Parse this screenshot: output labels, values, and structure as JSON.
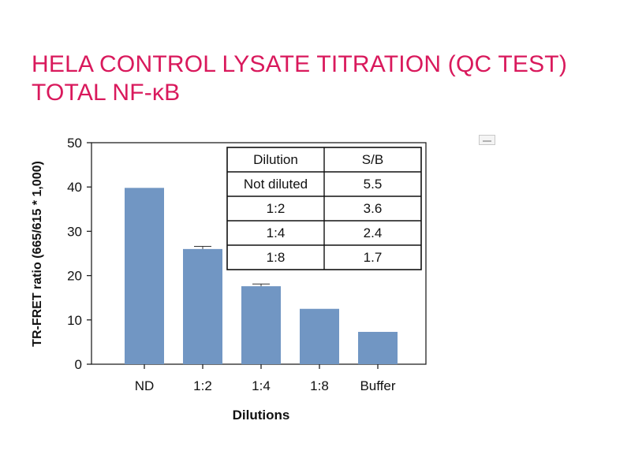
{
  "page": {
    "title_line1": "HELA CONTROL LYSATE TITRATION (QC TEST)",
    "title_line2": "TOTAL NF-κB"
  },
  "colors": {
    "title": "#d9195c",
    "bar": "#7196c3",
    "axis": "#222222"
  },
  "chart_data": {
    "type": "bar",
    "categories": [
      "ND",
      "1:2",
      "1:4",
      "1:8",
      "Buffer"
    ],
    "values": [
      39.8,
      26.0,
      17.6,
      12.5,
      7.3
    ],
    "errors": [
      0,
      0.6,
      0.5,
      0,
      0
    ],
    "xlabel": "Dilutions",
    "ylabel": "TR-FRET ratio (665/615 * 1,000)",
    "ylim": [
      0,
      50
    ],
    "yticks": [
      0,
      10,
      20,
      30,
      40,
      50
    ],
    "grid": false,
    "table": {
      "headers": [
        "Dilution",
        "S/B"
      ],
      "rows": [
        [
          "Not diluted",
          "5.5"
        ],
        [
          "1:2",
          "3.6"
        ],
        [
          "1:4",
          "2.4"
        ],
        [
          "1:8",
          "1.7"
        ]
      ]
    }
  }
}
